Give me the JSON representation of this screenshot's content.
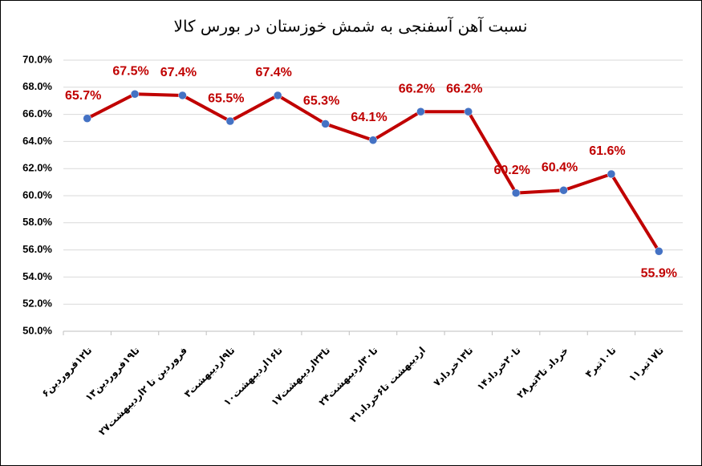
{
  "chart_data": {
    "type": "line",
    "title": "نسبت آهن آسفنجی به شمش خوزستان در بورس کالا",
    "categories": [
      "۶تا۱۲فروردین",
      "۱۳تا۱۹فروردین",
      "۲۷فروردین تا ۲اردیبهشت",
      "۳تا۹اردیبهشت",
      "۱۰تا۱۶اردیبهشت",
      "۱۷تا۲۳اردیبهشت",
      "۲۴تا۳۰اردیبهشت",
      "۳۱اردیبهشت تا۶خرداد",
      "۷تا۱۳خرداد",
      "۱۴تا۲۰خرداد",
      "۲۸خرداد تا۳تیر",
      "۴تا۱۰تیر",
      "۱۱تا۱۷تیر"
    ],
    "series": [
      {
        "name": "نسبت",
        "color": "#c00000",
        "marker_color": "#4472c4",
        "values": [
          65.7,
          67.5,
          67.4,
          65.5,
          67.4,
          65.3,
          64.1,
          66.2,
          66.2,
          60.2,
          60.4,
          61.6,
          55.9
        ],
        "value_labels": [
          "65.7%",
          "67.5%",
          "67.4%",
          "65.5%",
          "67.4%",
          "65.3%",
          "64.1%",
          "66.2%",
          "66.2%",
          "60.2%",
          "60.4%",
          "61.6%",
          "55.9%"
        ]
      }
    ],
    "ylim": [
      50,
      70
    ],
    "yticks": [
      {
        "value": 50,
        "label": "50.0%"
      },
      {
        "value": 52,
        "label": "52.0%"
      },
      {
        "value": 54,
        "label": "54.0%"
      },
      {
        "value": 56,
        "label": "56.0%"
      },
      {
        "value": 58,
        "label": "58.0%"
      },
      {
        "value": 60,
        "label": "60.0%"
      },
      {
        "value": 62,
        "label": "62.0%"
      },
      {
        "value": 64,
        "label": "64.0%"
      },
      {
        "value": 66,
        "label": "66.0%"
      },
      {
        "value": 68,
        "label": "68.0%"
      },
      {
        "value": 70,
        "label": "70.0%"
      }
    ],
    "grid": true
  }
}
